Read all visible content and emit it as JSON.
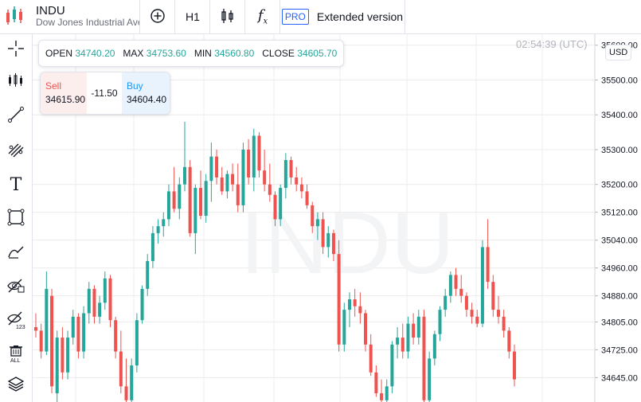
{
  "header": {
    "symbol": "INDU",
    "description": "Dow Jones Industrial Ave",
    "interval": "H1",
    "pro_label": "PRO",
    "extended_label": "Extended version"
  },
  "ohlc": {
    "open_label": "OPEN",
    "open": "34740.20",
    "max_label": "MAX",
    "max": "34753.60",
    "min_label": "MIN",
    "min": "34560.80",
    "close_label": "CLOSE",
    "close": "34605.70"
  },
  "trade": {
    "sell_label": "Sell",
    "sell_price": "34615.90",
    "spread": "-11.50",
    "buy_label": "Buy",
    "buy_price": "34604.40"
  },
  "time": "02:54:39 (UTC)",
  "currency": "USD",
  "watermark": "INDU",
  "colors": {
    "up": "#26a69a",
    "down": "#ef5350",
    "accent": "#2962ff"
  },
  "sidebar_icons": [
    "crosshair-icon",
    "candles-icon",
    "trend-line-icon",
    "fib-icon",
    "text-icon",
    "rectangle-icon",
    "brush-icon",
    "hide-drawings-icon",
    "hide-indicators-icon",
    "delete-all-icon",
    "layers-icon"
  ],
  "chart_data": {
    "type": "candlestick",
    "interval": "H1",
    "price_ticks": [
      "35600.00",
      "35500.00",
      "35400.00",
      "35300.00",
      "35200.00",
      "35120.00",
      "35040.00",
      "34960.00",
      "34880.00",
      "34805.00",
      "34725.00",
      "34645.00"
    ],
    "ylim": [
      34575,
      35620
    ],
    "candles": [
      [
        34790,
        34830,
        34760,
        34780
      ],
      [
        34780,
        34800,
        34700,
        34720
      ],
      [
        34720,
        34950,
        34710,
        34900
      ],
      [
        34880,
        34900,
        34600,
        34620
      ],
      [
        34600,
        34780,
        34560,
        34760
      ],
      [
        34760,
        34790,
        34640,
        34660
      ],
      [
        34660,
        34780,
        34640,
        34760
      ],
      [
        34760,
        34840,
        34740,
        34820
      ],
      [
        34820,
        34830,
        34700,
        34720
      ],
      [
        34720,
        34850,
        34700,
        34830
      ],
      [
        34830,
        34920,
        34800,
        34900
      ],
      [
        34900,
        34910,
        34800,
        34820
      ],
      [
        34820,
        34880,
        34800,
        34860
      ],
      [
        34860,
        34950,
        34840,
        34930
      ],
      [
        34930,
        34940,
        34790,
        34810
      ],
      [
        34810,
        34820,
        34700,
        34720
      ],
      [
        34720,
        34780,
        34600,
        34620
      ],
      [
        34620,
        34700,
        34560,
        34580
      ],
      [
        34580,
        34700,
        34570,
        34680
      ],
      [
        34680,
        34830,
        34660,
        34810
      ],
      [
        34810,
        34910,
        34800,
        34900
      ],
      [
        34900,
        35000,
        34880,
        34980
      ],
      [
        34980,
        35080,
        34960,
        35060
      ],
      [
        35060,
        35100,
        35030,
        35080
      ],
      [
        35080,
        35120,
        35050,
        35100
      ],
      [
        35100,
        35200,
        35080,
        35180
      ],
      [
        35180,
        35250,
        35120,
        35130
      ],
      [
        35130,
        35220,
        35100,
        35200
      ],
      [
        35200,
        35380,
        35180,
        35250
      ],
      [
        35250,
        35270,
        35050,
        35060
      ],
      [
        35060,
        35200,
        35000,
        35190
      ],
      [
        35190,
        35240,
        35100,
        35110
      ],
      [
        35110,
        35230,
        35090,
        35210
      ],
      [
        35210,
        35320,
        35150,
        35280
      ],
      [
        35280,
        35300,
        35200,
        35220
      ],
      [
        35220,
        35250,
        35170,
        35180
      ],
      [
        35180,
        35240,
        35160,
        35230
      ],
      [
        35230,
        35260,
        35180,
        35200
      ],
      [
        35200,
        35260,
        35120,
        35140
      ],
      [
        35140,
        35320,
        35120,
        35300
      ],
      [
        35300,
        35330,
        35200,
        35220
      ],
      [
        35220,
        35360,
        35180,
        35340
      ],
      [
        35340,
        35350,
        35220,
        35240
      ],
      [
        35240,
        35300,
        35180,
        35200
      ],
      [
        35200,
        35260,
        35150,
        35170
      ],
      [
        35170,
        35180,
        35080,
        35100
      ],
      [
        35100,
        35200,
        35080,
        35190
      ],
      [
        35190,
        35290,
        35160,
        35270
      ],
      [
        35270,
        35280,
        35200,
        35220
      ],
      [
        35220,
        35250,
        35180,
        35200
      ],
      [
        35200,
        35220,
        35160,
        35180
      ],
      [
        35180,
        35200,
        35130,
        35140
      ],
      [
        35140,
        35150,
        35060,
        35080
      ],
      [
        35080,
        35120,
        35040,
        35100
      ],
      [
        35100,
        35120,
        35000,
        35020
      ],
      [
        35020,
        35080,
        34990,
        35060
      ],
      [
        35060,
        35070,
        34980,
        35000
      ],
      [
        35000,
        35040,
        34720,
        34740
      ],
      [
        34740,
        34860,
        34720,
        34840
      ],
      [
        34840,
        34890,
        34790,
        34870
      ],
      [
        34870,
        34900,
        34820,
        34850
      ],
      [
        34850,
        34890,
        34800,
        34830
      ],
      [
        34830,
        34840,
        34720,
        34740
      ],
      [
        34740,
        34770,
        34650,
        34660
      ],
      [
        34660,
        34680,
        34590,
        34600
      ],
      [
        34600,
        34640,
        34560,
        34580
      ],
      [
        34580,
        34640,
        34560,
        34620
      ],
      [
        34620,
        34750,
        34600,
        34740
      ],
      [
        34740,
        34790,
        34700,
        34760
      ],
      [
        34760,
        34800,
        34700,
        34720
      ],
      [
        34720,
        34820,
        34700,
        34800
      ],
      [
        34800,
        34830,
        34740,
        34760
      ],
      [
        34760,
        34840,
        34740,
        34820
      ],
      [
        34820,
        34840,
        34560,
        34580
      ],
      [
        34580,
        34720,
        34560,
        34700
      ],
      [
        34700,
        34780,
        34680,
        34770
      ],
      [
        34770,
        34850,
        34750,
        34840
      ],
      [
        34840,
        34900,
        34820,
        34880
      ],
      [
        34880,
        34950,
        34860,
        34940
      ],
      [
        34940,
        34960,
        34880,
        34900
      ],
      [
        34900,
        34940,
        34860,
        34880
      ],
      [
        34880,
        34890,
        34820,
        34840
      ],
      [
        34840,
        34860,
        34800,
        34820
      ],
      [
        34820,
        34840,
        34790,
        34800
      ],
      [
        34800,
        35040,
        34790,
        35020
      ],
      [
        35020,
        35100,
        34900,
        34920
      ],
      [
        34920,
        34940,
        34820,
        34840
      ],
      [
        34840,
        34880,
        34800,
        34820
      ],
      [
        34820,
        34840,
        34760,
        34780
      ],
      [
        34780,
        34790,
        34700,
        34720
      ],
      [
        34720,
        34740,
        34620,
        34640
      ]
    ]
  }
}
